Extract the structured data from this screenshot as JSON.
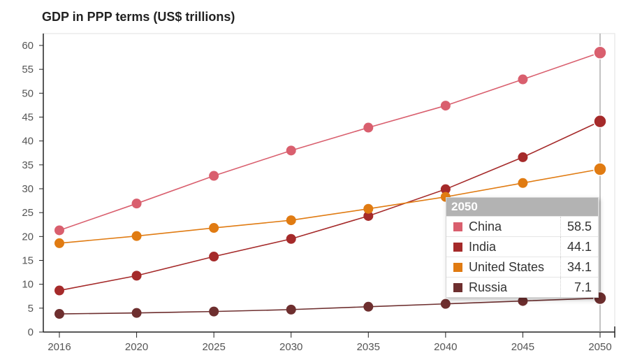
{
  "chart_data": {
    "type": "line",
    "title": "GDP in PPP terms (US$ trillions)",
    "x": [
      "2016",
      "2020",
      "2025",
      "2030",
      "2035",
      "2040",
      "2045",
      "2050"
    ],
    "ylim": [
      0,
      60
    ],
    "yticks": [
      0,
      5,
      10,
      15,
      20,
      25,
      30,
      35,
      40,
      45,
      50,
      55,
      60
    ],
    "grid": false,
    "series": [
      {
        "name": "China",
        "color": "#d95f6e",
        "values": [
          21.3,
          26.9,
          32.7,
          38.0,
          42.8,
          47.4,
          52.9,
          58.5
        ]
      },
      {
        "name": "India",
        "color": "#a52a2a",
        "values": [
          8.7,
          11.8,
          15.8,
          19.5,
          24.3,
          29.9,
          36.6,
          44.1
        ]
      },
      {
        "name": "United States",
        "color": "#e07b12",
        "values": [
          18.6,
          20.1,
          21.8,
          23.4,
          25.8,
          28.3,
          31.2,
          34.1
        ]
      },
      {
        "name": "Russia",
        "color": "#6e2f2f",
        "values": [
          3.8,
          4.0,
          4.3,
          4.7,
          5.3,
          5.9,
          6.5,
          7.1
        ]
      }
    ],
    "tooltip": {
      "header": "2050",
      "rows": [
        {
          "name": "China",
          "value": "58.5",
          "color": "#d95f6e"
        },
        {
          "name": "India",
          "value": "44.1",
          "color": "#a52a2a"
        },
        {
          "name": "United States",
          "value": "34.1",
          "color": "#e07b12"
        },
        {
          "name": "Russia",
          "value": "7.1",
          "color": "#6e2f2f"
        }
      ]
    },
    "highlight_index": 7
  }
}
